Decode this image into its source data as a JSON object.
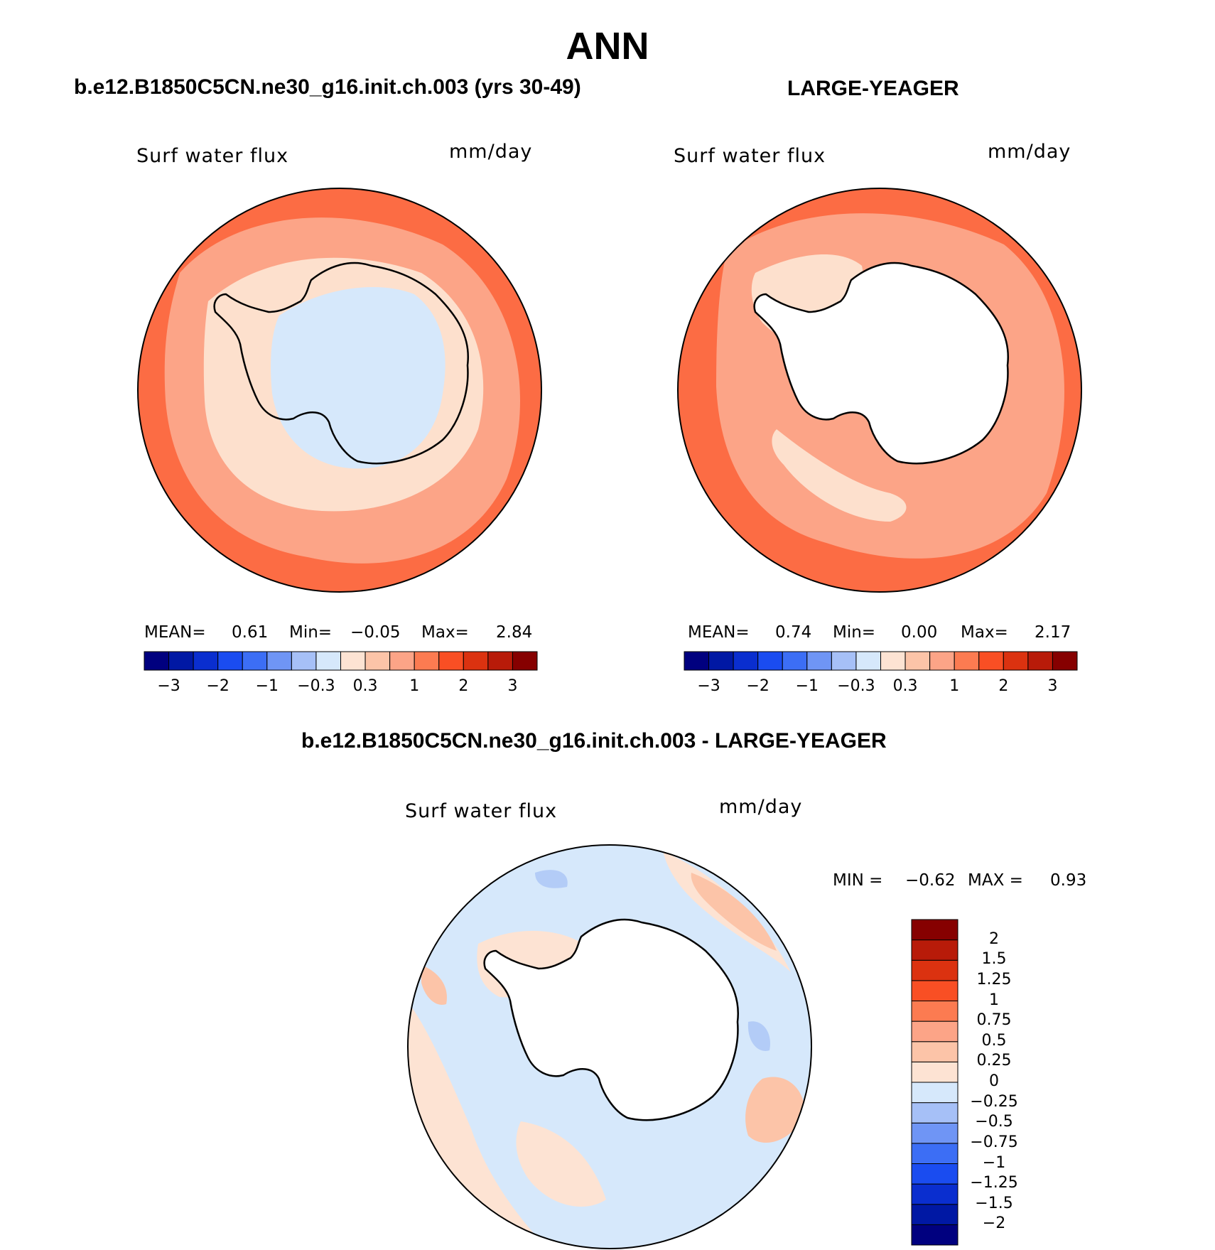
{
  "title": "ANN",
  "panels": [
    {
      "id": "model",
      "heading": "b.e12.B1850C5CN.ne30_g16.init.ch.003 (yrs 30-49)",
      "field": "Surf water flux",
      "units": "mm/day",
      "stats": {
        "mean_label": "MEAN=",
        "mean": "0.61",
        "min_label": "Min=",
        "min": "−0.05",
        "max_label": "Max=",
        "max": "2.84"
      },
      "bands": [
        {
          "level": "1 to 2",
          "color": "#fc6c44"
        },
        {
          "level": "0.3 to 1",
          "color": "#fca487"
        },
        {
          "level": "0 to 0.3",
          "color": "#fde0cd"
        },
        {
          "level": "-0.3 to 0",
          "color": "#d6e8fb"
        }
      ]
    },
    {
      "id": "obs",
      "heading": "LARGE-YEAGER",
      "field": "Surf water flux",
      "units": "mm/day",
      "stats": {
        "mean_label": "MEAN=",
        "mean": "0.74",
        "min_label": "Min=",
        "min": "0.00",
        "max_label": "Max=",
        "max": "2.17"
      },
      "bands": [
        {
          "level": "1 to 2",
          "color": "#fc6c44"
        },
        {
          "level": "0.3 to 1",
          "color": "#fca487"
        },
        {
          "level": "0 to 0.3",
          "color": "#fde0cd"
        },
        {
          "level": "missing",
          "color": "#ffffff"
        }
      ]
    },
    {
      "id": "diff",
      "heading": "b.e12.B1850C5CN.ne30_g16.init.ch.003 - LARGE-YEAGER",
      "field": "Surf water flux",
      "units": "mm/day",
      "stats": {
        "min_label": "MIN =",
        "min": "−0.62",
        "max_label": "MAX =",
        "max": "0.93"
      },
      "bands": [
        {
          "level": "0.25 to 0.5",
          "color": "#fcc4a8"
        },
        {
          "level": "0 to 0.25",
          "color": "#fde3d3"
        },
        {
          "level": "-0.25 to 0",
          "color": "#d6e8fb"
        },
        {
          "level": "-0.5 to -0.25",
          "color": "#b3ccf7"
        },
        {
          "level": "missing",
          "color": "#ffffff"
        }
      ]
    }
  ],
  "colorbar_top": {
    "colors": [
      "#00007f",
      "#0018a4",
      "#0a2ecf",
      "#1a4cf0",
      "#3c6ef5",
      "#6f95f5",
      "#a6c0f7",
      "#d6e8fb",
      "#fde3d3",
      "#fcc4a8",
      "#fca487",
      "#fc7b51",
      "#f94f24",
      "#db3210",
      "#b81b09",
      "#860000"
    ],
    "ticks": [
      "−3",
      "−2",
      "−1",
      "−0.3",
      "0.3",
      "1",
      "2",
      "3"
    ]
  },
  "colorbar_diff": {
    "colors": [
      "#00007f",
      "#0018a4",
      "#0a2ecf",
      "#1a4cf0",
      "#3c6ef5",
      "#6f95f5",
      "#a6c0f7",
      "#d6e8fb",
      "#fde3d3",
      "#fcc4a8",
      "#fca487",
      "#fc7b51",
      "#f94f24",
      "#db3210",
      "#b81b09",
      "#860000"
    ],
    "ticks": [
      "−2",
      "−1.5",
      "−1.25",
      "−1",
      "−0.75",
      "−0.5",
      "−0.25",
      "0",
      "0.25",
      "0.5",
      "0.75",
      "1",
      "1.25",
      "1.5",
      "2"
    ]
  }
}
